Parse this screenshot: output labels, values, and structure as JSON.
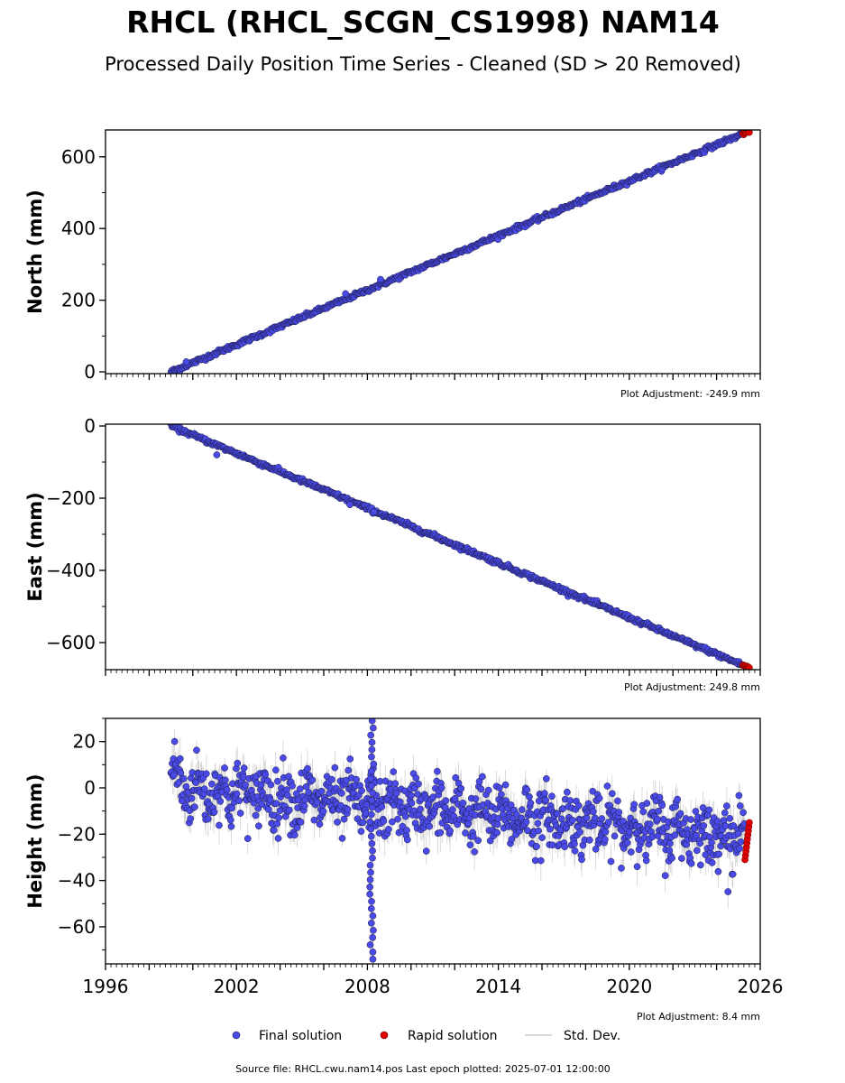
{
  "title": "RHCL (RHCL_SCGN_CS1998) NAM14",
  "subtitle": "Processed Daily Position Time Series - Cleaned (SD > 20 Removed)",
  "footer": "Source file: RHCL.cwu.nam14.pos  Last epoch plotted: 2025-07-01 12:00:00",
  "legend": {
    "final": "Final solution",
    "rapid": "Rapid solution",
    "std": "Std. Dev."
  },
  "colors": {
    "final": "#4a4ae8",
    "final_edge": "#1a1a40",
    "rapid": "#e00000",
    "std": "#999999"
  },
  "chart_data": [
    {
      "type": "scatter",
      "ylabel": "North (mm)",
      "adjustment": "Plot Adjustment: -249.9 mm",
      "xlim": [
        1996,
        2026
      ],
      "ylim": [
        -5,
        675
      ],
      "yticks": [
        0,
        200,
        400,
        600
      ],
      "trend": {
        "x0": 1999.0,
        "y0": 0,
        "x1": 2025.5,
        "y1": 672
      },
      "noise": 3,
      "offsets": [
        {
          "x": 2008.6,
          "y": 258
        },
        {
          "x": 1999.7,
          "y": 28
        },
        {
          "x": 2007.0,
          "y": 218
        }
      ],
      "rapid": {
        "x_from": 2025.2,
        "x_to": 2025.5,
        "n": 8
      }
    },
    {
      "type": "scatter",
      "ylabel": "East (mm)",
      "adjustment": "Plot Adjustment: 249.8 mm",
      "xlim": [
        1996,
        2026
      ],
      "ylim": [
        -675,
        5
      ],
      "yticks": [
        0,
        -200,
        -400,
        -600
      ],
      "trend": {
        "x0": 1999.0,
        "y0": 0,
        "x1": 2025.5,
        "y1": -670
      },
      "noise": 3,
      "offsets": [
        {
          "x": 2001.1,
          "y": -80
        },
        {
          "x": 2007.2,
          "y": -218
        },
        {
          "x": 2008.3,
          "y": -238
        }
      ],
      "rapid": {
        "x_from": 2025.2,
        "x_to": 2025.5,
        "n": 8
      }
    },
    {
      "type": "scatter",
      "ylabel": "Height (mm)",
      "adjustment": "Plot Adjustment: 8.4 mm",
      "xlim": [
        1996,
        2026
      ],
      "ylim": [
        -76,
        30
      ],
      "yticks": [
        20,
        0,
        -20,
        -40,
        -60
      ],
      "xticks": [
        1996,
        2002,
        2008,
        2014,
        2020,
        2026
      ],
      "trend": {
        "x0": 1999.0,
        "y0": 0,
        "x1": 2025.5,
        "y1": -21
      },
      "noise": 8,
      "std_band": 6,
      "spike": {
        "x": 2008.2,
        "y_min": -74,
        "y_max": 29
      },
      "rapid": {
        "x_from": 2025.3,
        "x_to": 2025.5,
        "y_min": -31,
        "y_max": -15,
        "n": 10
      }
    }
  ]
}
